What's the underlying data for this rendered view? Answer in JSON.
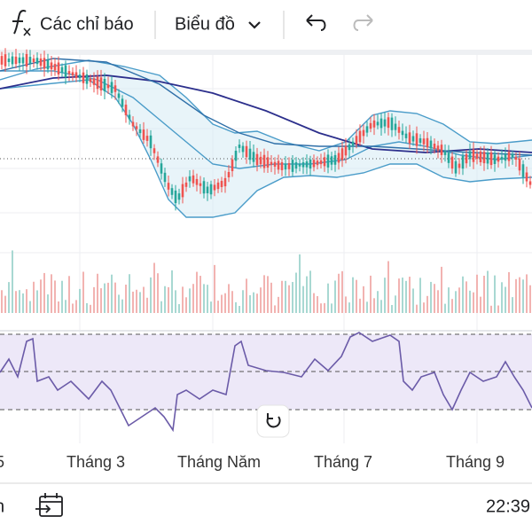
{
  "toolbar": {
    "indicators": "Các chỉ báo",
    "chart": "Biểu đồ"
  },
  "x_axis": {
    "labels": [
      "5",
      "Tháng 3",
      "Tháng Năm",
      "Tháng 7",
      "Tháng 9"
    ]
  },
  "footer": {
    "left": "n",
    "time": "22:39"
  }
}
